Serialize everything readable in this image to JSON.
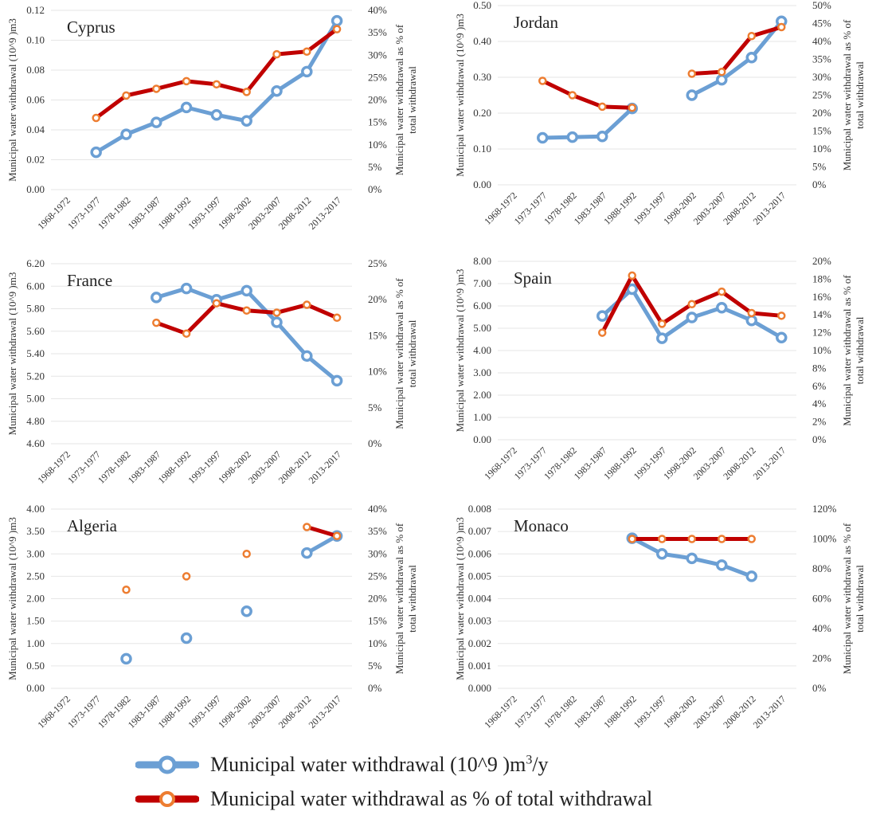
{
  "colors": {
    "municipal": "#6b9fd4",
    "percent": "#c00000",
    "marker_fill": "#ffffff",
    "percent_marker": "#ed7d31",
    "grid": "#e6e6e6",
    "text": "#333333"
  },
  "legend": {
    "municipal_label": "Municipal water withdrawal (10^9 )m",
    "municipal_sup": "3",
    "municipal_suffix": "/y",
    "percent_label": "Municipal water withdrawal as % of total withdrawal"
  },
  "chart_data": [
    {
      "type": "line",
      "title": "Cyprus",
      "categories": [
        "1968-1972",
        "1973-1977",
        "1978-1982",
        "1983-1987",
        "1988-1992",
        "1993-1997",
        "1998-2002",
        "2003-2007",
        "2008-2012",
        "2013-2017"
      ],
      "ylabel": "Municipal water withdrawal (10^9 )m3",
      "y2label": [
        "Municipal water withdrawal as % of",
        "total withdrawal"
      ],
      "yticks": [
        "0.00",
        "0.02",
        "0.04",
        "0.06",
        "0.08",
        "0.10",
        "0.12"
      ],
      "ylim": [
        0,
        0.12
      ],
      "y2ticks": [
        "0%",
        "5%",
        "10%",
        "15%",
        "20%",
        "25%",
        "30%",
        "35%",
        "40%"
      ],
      "y2lim": [
        0,
        40
      ],
      "series": [
        {
          "values": [
            null,
            0.025,
            0.037,
            0.045,
            0.055,
            0.05,
            0.046,
            0.066,
            0.079,
            0.113
          ]
        },
        {
          "values": [
            null,
            16,
            21,
            22.5,
            24.2,
            23.5,
            21.8,
            30.2,
            30.8,
            35.8
          ]
        }
      ]
    },
    {
      "type": "line",
      "title": "Jordan",
      "categories": [
        "1968-1972",
        "1973-1977",
        "1978-1982",
        "1983-1987",
        "1988-1992",
        "1993-1997",
        "1998-2002",
        "2003-2007",
        "2008-2012",
        "2013-2017"
      ],
      "ylabel": "Municipal water withdrawal (10^9 )m3",
      "y2label": [
        "Municipal water withdrawal as % of",
        "total withdrawal"
      ],
      "yticks": [
        "0.00",
        "0.10",
        "0.20",
        "0.30",
        "0.40",
        "0.50"
      ],
      "ylim": [
        0,
        0.5
      ],
      "y2ticks": [
        "0%",
        "5%",
        "10%",
        "15%",
        "20%",
        "25%",
        "30%",
        "35%",
        "40%",
        "45%",
        "50%"
      ],
      "y2lim": [
        0,
        50
      ],
      "series": [
        {
          "values": [
            null,
            0.131,
            0.133,
            0.135,
            0.213,
            null,
            0.25,
            0.293,
            0.355,
            0.456
          ]
        },
        {
          "values": [
            null,
            29,
            25,
            21.8,
            21.5,
            null,
            31,
            31.5,
            41.5,
            44
          ]
        }
      ]
    },
    {
      "type": "line",
      "title": "France",
      "categories": [
        "1968-1972",
        "1973-1977",
        "1978-1982",
        "1983-1987",
        "1988-1992",
        "1993-1997",
        "1998-2002",
        "2003-2007",
        "2008-2012",
        "2013-2017"
      ],
      "ylabel": "Municipal water withdrawal (10^9 )m3",
      "y2label": [
        "Municipal water withdrawal as % of",
        "total withdrawal"
      ],
      "yticks": [
        "4.60",
        "4.80",
        "5.00",
        "5.20",
        "5.40",
        "5.60",
        "5.80",
        "6.00",
        "6.20"
      ],
      "ylim": [
        4.6,
        6.2
      ],
      "y2ticks": [
        "0%",
        "5%",
        "10%",
        "15%",
        "20%",
        "25%"
      ],
      "y2lim": [
        0,
        25
      ],
      "series": [
        {
          "values": [
            null,
            null,
            null,
            5.9,
            5.98,
            5.88,
            5.96,
            5.68,
            5.38,
            5.16
          ]
        },
        {
          "values": [
            null,
            null,
            null,
            16.8,
            15.3,
            19.5,
            18.5,
            18.2,
            19.3,
            17.5
          ]
        }
      ]
    },
    {
      "type": "line",
      "title": "Spain",
      "categories": [
        "1968-1972",
        "1973-1977",
        "1978-1982",
        "1983-1987",
        "1988-1992",
        "1993-1997",
        "1998-2002",
        "2003-2007",
        "2008-2012",
        "2013-2017"
      ],
      "ylabel": "Municipal water withdrawal (10^9 )m3",
      "y2label": [
        "Municipal water withdrawal as % of",
        "total withdrawal"
      ],
      "yticks": [
        "0.00",
        "1.00",
        "2.00",
        "3.00",
        "4.00",
        "5.00",
        "6.00",
        "7.00",
        "8.00"
      ],
      "ylim": [
        0,
        8
      ],
      "y2ticks": [
        "0%",
        "2%",
        "4%",
        "6%",
        "8%",
        "10%",
        "12%",
        "14%",
        "16%",
        "18%",
        "20%"
      ],
      "y2lim": [
        0,
        20
      ],
      "series": [
        {
          "values": [
            null,
            null,
            null,
            5.55,
            6.75,
            4.55,
            5.48,
            5.92,
            5.35,
            4.58
          ]
        },
        {
          "values": [
            null,
            null,
            null,
            12.0,
            18.4,
            13.0,
            15.2,
            16.6,
            14.2,
            13.9
          ]
        }
      ]
    },
    {
      "type": "line",
      "title": "Algeria",
      "categories": [
        "1968-1972",
        "1973-1977",
        "1978-1982",
        "1983-1987",
        "1988-1992",
        "1993-1997",
        "1998-2002",
        "2003-2007",
        "2008-2012",
        "2013-2017"
      ],
      "ylabel": "Municipal water withdrawal (10^9 )m3",
      "y2label": [
        "Municipal water withdrawal as % of",
        "total withdrawal"
      ],
      "yticks": [
        "0.00",
        "0.50",
        "1.00",
        "1.50",
        "2.00",
        "2.50",
        "3.00",
        "3.50",
        "4.00"
      ],
      "ylim": [
        0,
        4
      ],
      "y2ticks": [
        "0%",
        "5%",
        "10%",
        "15%",
        "20%",
        "25%",
        "30%",
        "35%",
        "40%"
      ],
      "y2lim": [
        0,
        40
      ],
      "series": [
        {
          "values": [
            null,
            null,
            0.66,
            null,
            1.12,
            null,
            1.72,
            null,
            3.02,
            3.4
          ]
        },
        {
          "values": [
            null,
            null,
            22,
            null,
            25,
            null,
            30,
            null,
            36,
            34
          ]
        }
      ]
    },
    {
      "type": "line",
      "title": "Monaco",
      "categories": [
        "1968-1972",
        "1973-1977",
        "1978-1982",
        "1983-1987",
        "1988-1992",
        "1993-1997",
        "1998-2002",
        "2003-2007",
        "2008-2012",
        "2013-2017"
      ],
      "ylabel": "Municipal water withdrawal (10^9 )m3",
      "y2label": [
        "Municipal water withdrawal as % of",
        "total withdrawal"
      ],
      "yticks": [
        "0.000",
        "0.001",
        "0.002",
        "0.003",
        "0.004",
        "0.005",
        "0.006",
        "0.007",
        "0.008"
      ],
      "ylim": [
        0,
        0.008
      ],
      "y2ticks": [
        "0%",
        "20%",
        "40%",
        "60%",
        "80%",
        "100%",
        "120%"
      ],
      "y2lim": [
        0,
        120
      ],
      "series": [
        {
          "values": [
            null,
            null,
            null,
            null,
            0.0067,
            0.006,
            0.0058,
            0.0055,
            0.005,
            null
          ]
        },
        {
          "values": [
            null,
            null,
            null,
            null,
            100,
            100,
            100,
            100,
            100,
            null
          ]
        }
      ]
    }
  ]
}
